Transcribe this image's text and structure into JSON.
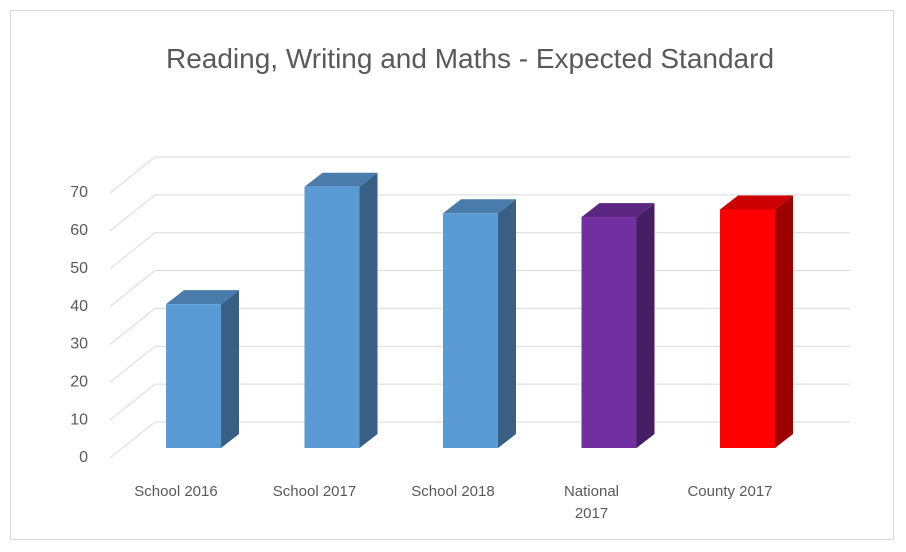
{
  "chart_data": {
    "type": "bar3d",
    "title": "Reading, Writing and Maths - Expected Standard",
    "categories": [
      "School 2016",
      "School 2017",
      "School 2018",
      "National 2017",
      "County 2017"
    ],
    "values": [
      38,
      69,
      62,
      61,
      63
    ],
    "colors": [
      "#5b9bd5",
      "#5b9bd5",
      "#5b9bd5",
      "#7030a0",
      "#ff0000"
    ],
    "ylim": [
      0,
      70
    ],
    "yticks": [
      0,
      10,
      20,
      30,
      40,
      50,
      60,
      70
    ],
    "grid": true
  }
}
